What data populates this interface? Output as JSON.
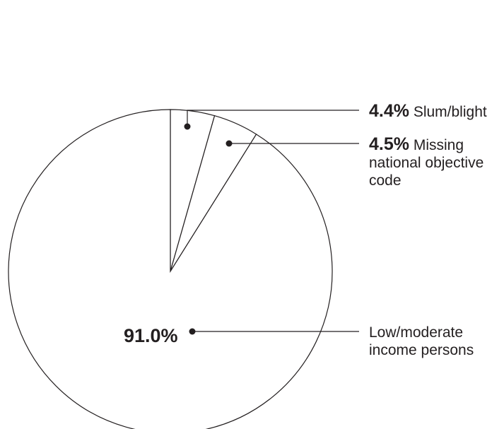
{
  "chart_data": {
    "type": "pie",
    "start_angle_deg": 0,
    "direction": "clockwise",
    "fill_color": "#ffffff",
    "stroke_color": "#231f20",
    "slices": [
      {
        "value": 4.4,
        "pct_label": "4.4%",
        "text_lines": [
          "Slum/blight"
        ]
      },
      {
        "value": 4.5,
        "pct_label": "4.5%",
        "text_lines": [
          "Missing",
          "national objective",
          "code"
        ]
      },
      {
        "value": 91.0,
        "pct_label": "91.0%",
        "text_lines": [
          "Low/moderate",
          "income persons"
        ]
      }
    ]
  }
}
